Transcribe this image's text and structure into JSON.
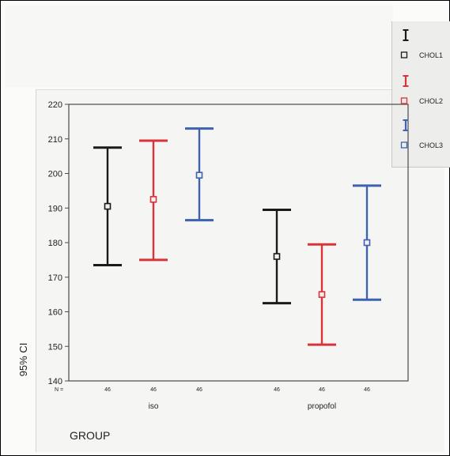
{
  "chart_data": {
    "type": "errorbar",
    "ylabel": "95% CI",
    "xlabel": "GROUP",
    "ylim": [
      140,
      220
    ],
    "yticks": [
      140,
      150,
      160,
      170,
      180,
      190,
      200,
      210,
      220
    ],
    "n_label": "N =",
    "categories": [
      "iso",
      "propofol"
    ],
    "series": [
      {
        "name": "CHOL1",
        "color": "#1a1a1a",
        "points": [
          {
            "mean": 190.5,
            "low": 173.5,
            "high": 207.5,
            "n": "46"
          },
          {
            "mean": 176,
            "low": 162.5,
            "high": 189.5,
            "n": "46"
          }
        ]
      },
      {
        "name": "CHOL2",
        "color": "#d8343a",
        "points": [
          {
            "mean": 192.5,
            "low": 175,
            "high": 209.5,
            "n": "46"
          },
          {
            "mean": 165,
            "low": 150.5,
            "high": 179.5,
            "n": "46"
          }
        ]
      },
      {
        "name": "CHOL3",
        "color": "#3e62b0",
        "points": [
          {
            "mean": 199.5,
            "low": 186.5,
            "high": 213,
            "n": "46"
          },
          {
            "mean": 180,
            "low": 163.5,
            "high": 196.5,
            "n": "46"
          }
        ]
      }
    ],
    "legend_position": "top-right"
  }
}
